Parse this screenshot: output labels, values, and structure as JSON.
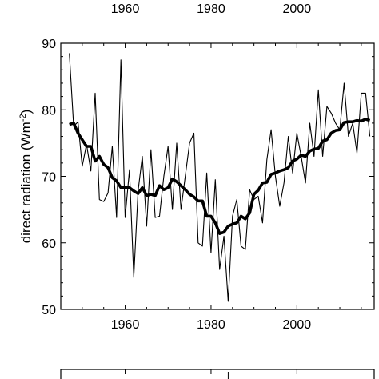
{
  "chart_data": [
    {
      "type": "line",
      "note": "bottom edge of a chart panel cropped at the top of the image; only x tick labels visible",
      "xticks": [
        1960,
        1980,
        2000
      ]
    },
    {
      "type": "line",
      "title": "",
      "xlabel": "",
      "ylabel": "direct radiation (Wm",
      "ylabel_sup": "-2",
      "ylabel_close": ")",
      "xlim": [
        1945,
        2018
      ],
      "ylim": [
        50,
        90
      ],
      "xticks": [
        1960,
        1980,
        2000
      ],
      "yticks": [
        50,
        60,
        70,
        80,
        90
      ],
      "grid": false,
      "series": [
        {
          "style": "thin",
          "color": "#000000",
          "x": [
            1947,
            1948,
            1949,
            1950,
            1951,
            1952,
            1953,
            1954,
            1955,
            1956,
            1957,
            1958,
            1959,
            1960,
            1961,
            1962,
            1963,
            1964,
            1965,
            1966,
            1967,
            1968,
            1969,
            1970,
            1971,
            1972,
            1973,
            1974,
            1975,
            1976,
            1977,
            1978,
            1979,
            1980,
            1981,
            1982,
            1983,
            1984,
            1985,
            1986,
            1987,
            1988,
            1989,
            1990,
            1991,
            1992,
            1993,
            1994,
            1995,
            1996,
            1997,
            1998,
            1999,
            2000,
            2001,
            2002,
            2003,
            2004,
            2005,
            2006,
            2007,
            2008,
            2009,
            2010,
            2011,
            2012,
            2013,
            2014,
            2015,
            2016,
            2017
          ],
          "y": [
            88.5,
            77.5,
            78.2,
            71.5,
            74.8,
            70.8,
            82.5,
            66.5,
            66.2,
            67.5,
            74.5,
            63.8,
            87.5,
            63.8,
            71.0,
            54.8,
            67.8,
            73.0,
            62.5,
            74.0,
            63.8,
            64.0,
            70.0,
            74.5,
            65.0,
            75.0,
            65.0,
            70.0,
            75.0,
            76.5,
            60.0,
            59.5,
            70.5,
            58.5,
            69.5,
            56.0,
            61.0,
            51.2,
            64.0,
            66.5,
            59.5,
            59.0,
            68.0,
            66.5,
            67.0,
            63.0,
            72.5,
            77.0,
            70.0,
            65.5,
            69.0,
            76.0,
            70.5,
            76.5,
            73.0,
            69.0,
            78.0,
            73.0,
            83.0,
            73.0,
            80.5,
            79.5,
            78.0,
            77.0,
            84.0,
            76.0,
            78.0,
            73.5,
            82.5,
            82.5,
            76.0
          ]
        },
        {
          "style": "thick",
          "color": "#000000",
          "x": [
            1947,
            1948,
            1949,
            1950,
            1951,
            1952,
            1953,
            1954,
            1955,
            1956,
            1957,
            1958,
            1959,
            1960,
            1961,
            1962,
            1963,
            1964,
            1965,
            1966,
            1967,
            1968,
            1969,
            1970,
            1971,
            1972,
            1973,
            1974,
            1975,
            1976,
            1977,
            1978,
            1979,
            1980,
            1981,
            1982,
            1983,
            1984,
            1985,
            1986,
            1987,
            1988,
            1989,
            1990,
            1991,
            1992,
            1993,
            1994,
            1995,
            1996,
            1997,
            1998,
            1999,
            2000,
            2001,
            2002,
            2003,
            2004,
            2005,
            2006,
            2007,
            2008,
            2009,
            2010,
            2011,
            2012,
            2013,
            2014,
            2015,
            2016,
            2017
          ],
          "y": [
            77.8,
            78.0,
            76.5,
            75.5,
            74.5,
            74.5,
            72.3,
            73.0,
            71.8,
            71.3,
            69.8,
            69.3,
            68.3,
            68.3,
            68.3,
            67.8,
            67.4,
            68.3,
            67.1,
            67.3,
            67.1,
            68.6,
            68.0,
            68.3,
            69.6,
            69.2,
            68.6,
            68.0,
            67.3,
            66.9,
            66.3,
            66.3,
            64.0,
            64.0,
            63.0,
            61.4,
            61.6,
            62.5,
            62.8,
            63.0,
            64.0,
            63.6,
            64.5,
            67.3,
            67.9,
            69.0,
            69.1,
            70.3,
            70.5,
            70.8,
            71.0,
            71.3,
            72.3,
            72.6,
            73.2,
            73.0,
            73.8,
            74.1,
            74.2,
            75.3,
            75.5,
            76.5,
            76.9,
            77.0,
            78.1,
            78.2,
            78.2,
            78.4,
            78.3,
            78.6,
            78.4
          ]
        }
      ]
    },
    {
      "type": "line",
      "note": "top edge of a chart panel cropped at the bottom of the image; no labels visible"
    }
  ]
}
